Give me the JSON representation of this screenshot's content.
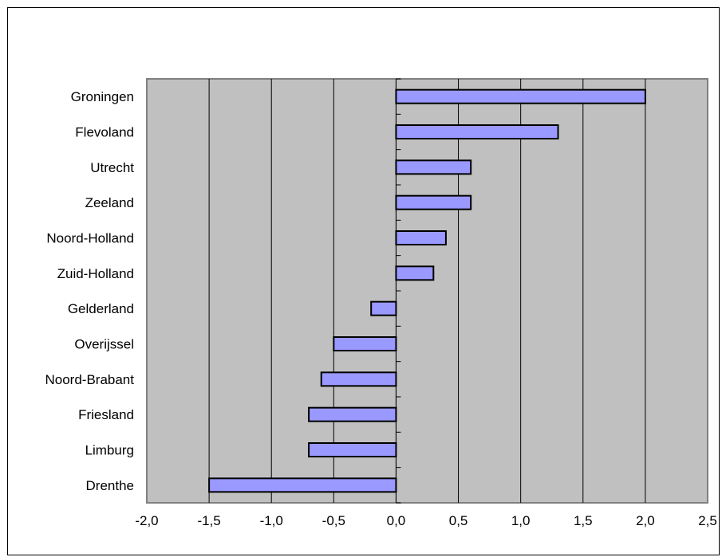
{
  "chart_data": {
    "type": "bar",
    "orientation": "horizontal",
    "categories": [
      "Groningen",
      "Flevoland",
      "Utrecht",
      "Zeeland",
      "Noord-Holland",
      "Zuid-Holland",
      "Gelderland",
      "Overijssel",
      "Noord-Brabant",
      "Friesland",
      "Limburg",
      "Drenthe"
    ],
    "values": [
      2.0,
      1.3,
      0.6,
      0.6,
      0.4,
      0.3,
      -0.2,
      -0.5,
      -0.6,
      -0.7,
      -0.7,
      -1.5
    ],
    "title": "",
    "xlabel": "",
    "ylabel": "",
    "xlim": [
      -2.0,
      2.5
    ],
    "x_ticks": [
      -2.0,
      -1.5,
      -1.0,
      -0.5,
      0.0,
      0.5,
      1.0,
      1.5,
      2.0,
      2.5
    ],
    "x_tick_labels": [
      "-2,0",
      "-1,5",
      "-1,0",
      "-0,5",
      "0,0",
      "0,5",
      "1,0",
      "1,5",
      "2,0",
      "2,5"
    ],
    "grid": "vertical",
    "legend": "none",
    "colors": {
      "bar_fill": "#9999ff",
      "bar_stroke": "#000000",
      "plot_background": "#c0c0c0",
      "plot_border": "#808080",
      "gridline": "#000000"
    }
  }
}
